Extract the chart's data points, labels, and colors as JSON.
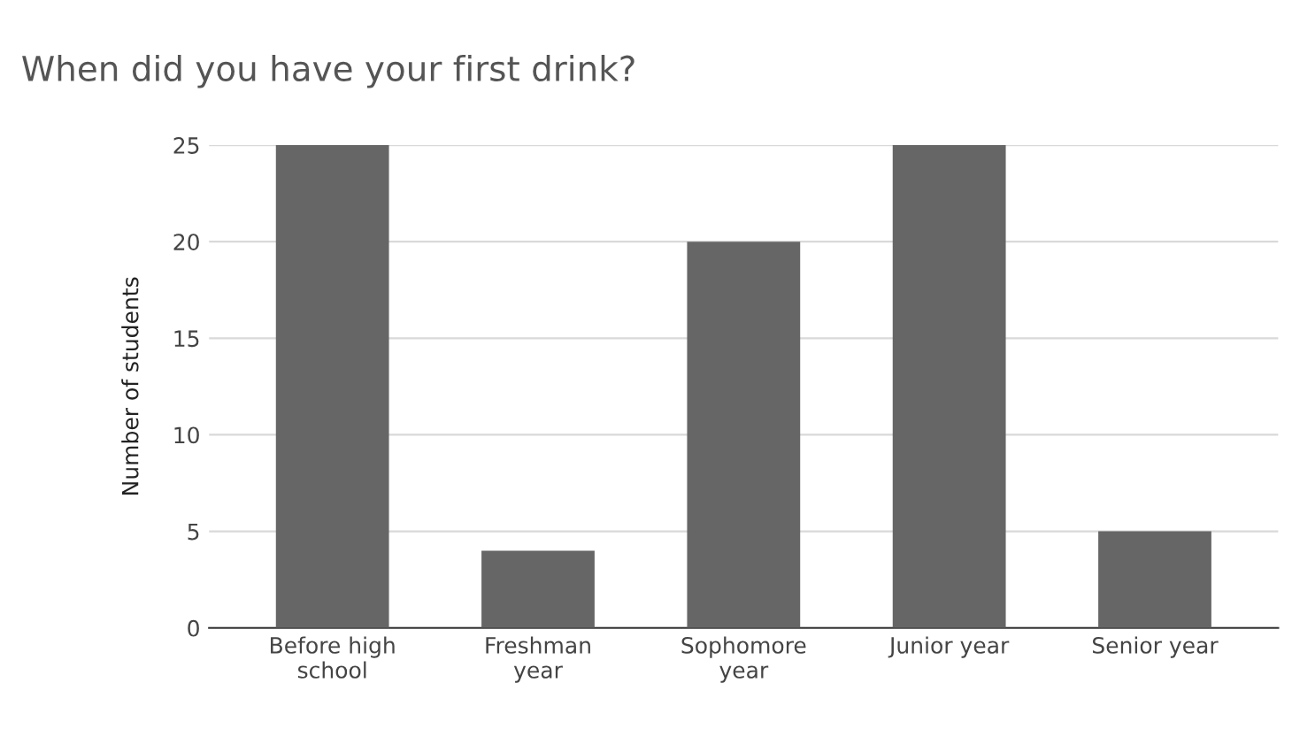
{
  "chart_data": {
    "type": "bar",
    "title": "When did you have your first drink?",
    "ylabel": "Number of students",
    "categories": [
      "Before high\nschool",
      "Freshman\nyear",
      "Sophomore\nyear",
      "Junior year",
      "Senior year"
    ],
    "values": [
      25,
      4,
      20,
      25,
      5
    ],
    "color": "#666666",
    "ylim": [
      0,
      25
    ],
    "yticks": [
      0,
      5,
      10,
      15,
      20,
      25
    ],
    "grid": "y",
    "legend": false
  }
}
